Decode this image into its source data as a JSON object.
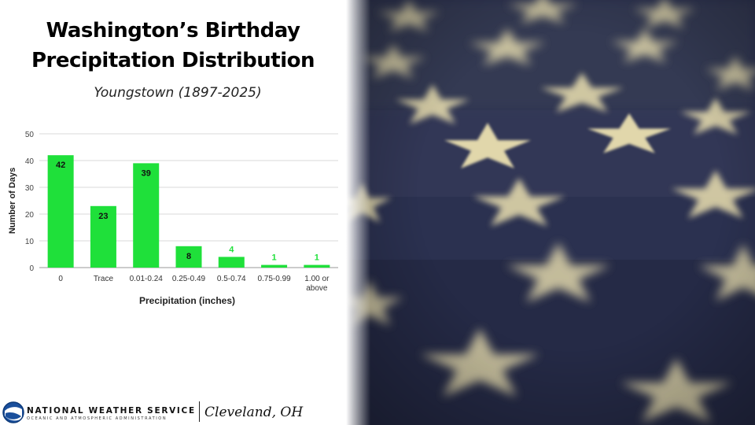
{
  "title_line1": "Washington’s Birthday",
  "title_line2": "Precipitation Distribution",
  "subtitle": "Youngstown (1897-2025)",
  "footer": {
    "agency": "NATIONAL WEATHER SERVICE",
    "agency_sub": "OCEANIC AND ATMOSPHERIC ADMINISTRATION",
    "office": "Cleveland, OH"
  },
  "colors": {
    "bar": "#1fe03a",
    "data_label_inside": "#111111",
    "data_label_outside": "#1fe03a",
    "grid": "#d9d9d9",
    "flag_blue": "#2b3150",
    "star": "#ddd3a8"
  },
  "chart_data": {
    "type": "bar",
    "categories": [
      "0",
      "Trace",
      "0.01-0.24",
      "0.25-0.49",
      "0.5-0.74",
      "0.75-0.99",
      "1.00 or above"
    ],
    "values": [
      42,
      23,
      39,
      8,
      4,
      1,
      1
    ],
    "title": "",
    "xlabel": "Precipitation (inches)",
    "ylabel": "Number of Days",
    "ylim": [
      0,
      50
    ],
    "yticks": [
      0,
      10,
      20,
      30,
      40,
      50
    ],
    "grid": true,
    "legend": "none"
  }
}
